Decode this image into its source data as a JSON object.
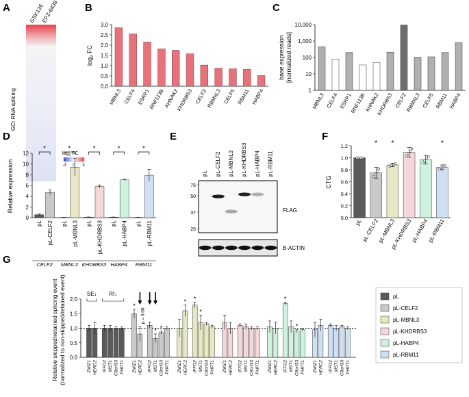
{
  "panel_letters": [
    "A",
    "B",
    "C",
    "D",
    "E",
    "F",
    "G"
  ],
  "colors": {
    "pink": "#e8727a",
    "dark": "#6d6d6d",
    "mid": "#b0b0b0",
    "pL": "#5a5a5a",
    "CELF2": "#c9c9c9",
    "MBNL3": "#e7e8c3",
    "KHDRBS3": "#f3d7d9",
    "HABP4": "#cdf2dd",
    "RBM11": "#cfe0f3",
    "heat_red": "#e8434a",
    "heat_blue": "#3f4fc4"
  },
  "panel_a": {
    "columns": [
      "GSK126",
      "EPZ-6438"
    ],
    "side_label": "GO: RNA splicing",
    "legend_title": "log",
    "legend_sub": "2",
    "legend_suffix": " FC",
    "legend_ticks": [
      "-3",
      "0",
      "3"
    ]
  },
  "chart_data": [
    {
      "panel": "B",
      "type": "bar",
      "title": "",
      "ylabel": "log",
      "ylabel_sub": "2",
      "ylabel_suffix": " FC",
      "ylim": [
        0,
        3.0
      ],
      "yticks": [
        "0.0",
        "0.5",
        "1.0",
        "1.5",
        "2.0",
        "2.5",
        "3.0"
      ],
      "categories": [
        "MBNL3",
        "CELF4",
        "ESRP1",
        "RNF113B",
        "AHNAK2",
        "KHDRBS3",
        "CELF2",
        "RBMXL3",
        "CELF5",
        "RBM11",
        "HABP4"
      ],
      "values": [
        2.85,
        2.55,
        2.15,
        1.82,
        1.75,
        1.58,
        1.03,
        0.88,
        0.85,
        0.82,
        0.52
      ]
    },
    {
      "panel": "C",
      "type": "bar",
      "scale": "log",
      "ylabel": "base expression",
      "ylabel2": "[normalized reads]",
      "ylim": [
        1,
        10000
      ],
      "yticks": [
        "1",
        "10",
        "100",
        "1,000",
        "10,000"
      ],
      "categories": [
        "MBNL3",
        "CELF4",
        "ESRP1",
        "RNF113B",
        "AHNAK2",
        "KHDRBS3",
        "CELF2",
        "RBMXL3",
        "CELF5",
        "RBM11",
        "HABP4"
      ],
      "values": [
        450,
        80,
        200,
        35,
        50,
        210,
        9500,
        105,
        110,
        200,
        800
      ],
      "fill": [
        "mid",
        "white",
        "mid",
        "white",
        "white",
        "mid",
        "dark",
        "mid",
        "mid",
        "mid",
        "mid"
      ]
    },
    {
      "panel": "D",
      "type": "bar",
      "ylabel": "Relative expression",
      "ylim": [
        0,
        12
      ],
      "yticks": [
        "0",
        "2",
        "4",
        "6",
        "8",
        "10",
        "12"
      ],
      "groups": [
        {
          "gene": "CELF2",
          "bars": [
            {
              "label": "pL",
              "value": 0.55,
              "err": 0.15,
              "color": "pL"
            },
            {
              "label": "pL-CELF2",
              "value": 4.7,
              "err": 0.45,
              "color": "CELF2"
            }
          ]
        },
        {
          "gene": "MBNL3",
          "bars": [
            {
              "label": "pL",
              "value": 0.05,
              "err": 0.02,
              "color": "pL"
            },
            {
              "label": "pL-MBNL3",
              "value": 9.4,
              "err": 1.6,
              "color": "MBNL3"
            }
          ]
        },
        {
          "gene": "KHDRBS3",
          "bars": [
            {
              "label": "pL",
              "value": 0.1,
              "err": 0.03,
              "color": "pL"
            },
            {
              "label": "pL-KHDRBS3",
              "value": 5.8,
              "err": 0.3,
              "color": "KHDRBS3"
            }
          ]
        },
        {
          "gene": "HABP4",
          "bars": [
            {
              "label": "pL",
              "value": 0.1,
              "err": 0.02,
              "color": "pL"
            },
            {
              "label": "pL-HABP4",
              "value": 7.05,
              "err": 0.12,
              "color": "HABP4"
            }
          ]
        },
        {
          "gene": "RBM11",
          "bars": [
            {
              "label": "pL",
              "value": 0.05,
              "err": 0.02,
              "color": "pL"
            },
            {
              "label": "pL-RBM11",
              "value": 7.9,
              "err": 1.1,
              "color": "RBM11"
            }
          ]
        }
      ],
      "sig": "*"
    },
    {
      "panel": "F",
      "type": "bar",
      "ylabel": "CTG",
      "ylim": [
        0,
        1.2
      ],
      "yticks": [
        "0.0",
        "0.2",
        "0.4",
        "0.6",
        "0.8",
        "1.0",
        "1.2"
      ],
      "categories": [
        "pL",
        "pL-CELF2",
        "pL-MBNL3",
        "pL-KHDRBS3",
        "pL-HABP4",
        "pL-RBM11"
      ],
      "values": [
        1.0,
        0.75,
        0.88,
        1.09,
        0.97,
        0.84
      ],
      "errors": [
        0.0,
        0.09,
        0.03,
        0.08,
        0.07,
        0.04
      ],
      "colors": [
        "pL",
        "CELF2",
        "MBNL3",
        "KHDRBS3",
        "HABP4",
        "RBM11"
      ],
      "sig": [
        "",
        "*",
        "*",
        "",
        "",
        "*"
      ]
    },
    {
      "panel": "G",
      "type": "bar",
      "ylabel": "Relative skipped/retained splicing event",
      "ylabel2": "(normalized to non-skipped/retained event)",
      "ylim": [
        0,
        2.0
      ],
      "yticks": [
        "0.0",
        "0.5",
        "1.0",
        "1.5",
        "2.0"
      ],
      "events": [
        "ZMIZ1",
        "HERC2",
        "IFFO2",
        "MST1",
        "C8orf33",
        "PHPT1"
      ],
      "event_types": [
        "SE",
        "SE",
        "RI",
        "RI",
        "RI",
        "RI"
      ],
      "series": [
        {
          "name": "pL",
          "color": "pL",
          "values": [
            1.0,
            1.0,
            1.0,
            1.0,
            1.0,
            1.0
          ],
          "errors": [
            0.1,
            0.2,
            0.1,
            0.1,
            0.05,
            0.05
          ]
        },
        {
          "name": "pL-CELF2",
          "color": "CELF2",
          "values": [
            1.5,
            0.8,
            1.1,
            0.65,
            0.85,
            1.0
          ],
          "errors": [
            0.15,
            0.25,
            0.1,
            0.15,
            0.05,
            0.05
          ],
          "sig": [
            "*",
            "",
            "",
            "*",
            "*",
            ""
          ]
        },
        {
          "name": "pL-MBNL3",
          "color": "MBNL3",
          "values": [
            1.0,
            1.6,
            1.8,
            1.2,
            1.15,
            1.05
          ],
          "errors": [
            0.3,
            0.2,
            0.1,
            0.25,
            0.05,
            0.05
          ],
          "sig": [
            "",
            "*",
            "*",
            "*",
            "",
            ""
          ]
        },
        {
          "name": "pL-KHDRBS3",
          "color": "KHDRBS3",
          "values": [
            1.2,
            1.0,
            1.1,
            1.05,
            1.0,
            1.0
          ],
          "errors": [
            0.25,
            0.2,
            0.05,
            0.1,
            0.05,
            0.05
          ]
        },
        {
          "name": "pL-HABP4",
          "color": "HABP4",
          "values": [
            1.05,
            1.0,
            1.85,
            1.05,
            0.9,
            0.95
          ],
          "errors": [
            0.2,
            0.2,
            0.05,
            0.2,
            0.05,
            0.05
          ],
          "sig": [
            "",
            "",
            "*",
            "",
            "*",
            ""
          ]
        },
        {
          "name": "pL-RBM11",
          "color": "RBM11",
          "values": [
            0.95,
            1.1,
            1.1,
            1.0,
            1.05,
            1.0
          ],
          "errors": [
            0.25,
            0.2,
            0.05,
            0.1,
            0.05,
            0.05
          ]
        }
      ],
      "arrow_labels": [
        "SE↓",
        "RI↓"
      ],
      "p_annotation": "p = 0.08"
    }
  ],
  "panel_e": {
    "lanes": [
      "pL",
      "pL-CELF2",
      "pL-MBNL3",
      "pL-KHDRBS3",
      "pL-HABP4",
      "pL-RBM11"
    ],
    "mw_markers": [
      "75",
      "50",
      "37",
      "25"
    ],
    "blot1_label": "FLAG",
    "blot2_label": "B-ACTIN"
  }
}
